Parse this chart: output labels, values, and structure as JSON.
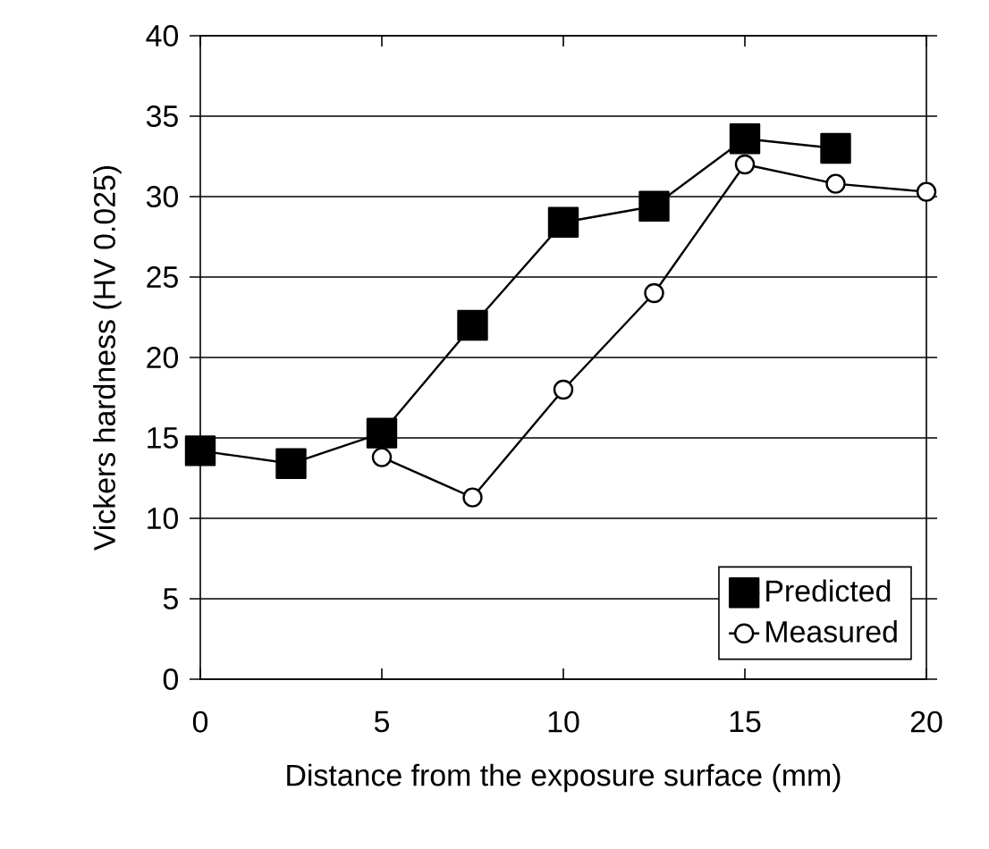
{
  "chart_data": {
    "type": "line",
    "xlabel": "Distance from the exposure surface (mm)",
    "ylabel": "Vickers hardness (HV 0.025)",
    "xlim": [
      0,
      20
    ],
    "ylim": [
      0,
      40
    ],
    "xticks": [
      0,
      5,
      10,
      15,
      20
    ],
    "yticks": [
      0,
      5,
      10,
      15,
      20,
      25,
      30,
      35,
      40
    ],
    "grid": "y",
    "legend": "bottom right",
    "line_style": "solid",
    "series": [
      {
        "name": "Predicted",
        "color": "#000000",
        "marker": "square",
        "x": [
          0,
          2.5,
          5,
          7.5,
          10,
          12.5,
          15,
          17.5
        ],
        "values": [
          14.2,
          13.4,
          15.3,
          22,
          28.4,
          29.4,
          33.6,
          33
        ]
      },
      {
        "name": "Measured",
        "color": "#000000",
        "marker": "circle",
        "x": [
          5,
          7.5,
          10,
          12.5,
          15,
          17.5,
          20
        ],
        "values": [
          13.8,
          11.3,
          18,
          24,
          32,
          30.8,
          30.3
        ]
      }
    ]
  }
}
